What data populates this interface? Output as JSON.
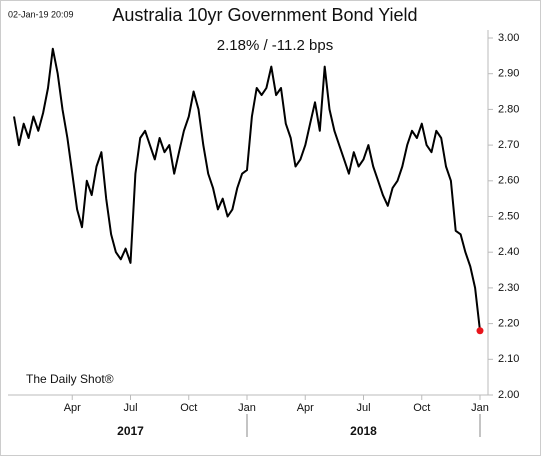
{
  "chart_data": {
    "type": "line",
    "timestamp": "02-Jan-19 20:09",
    "title": "Australia 10yr Government Bond Yield",
    "subtitle": "2.18%  /  -11.2 bps",
    "source": "The Daily Shot®",
    "color": "#000000",
    "last_point_color": "#e8141b",
    "x": [
      "2017-01",
      "2017-01",
      "2017-01",
      "2017-01",
      "2017-02",
      "2017-02",
      "2017-02",
      "2017-02",
      "2017-03",
      "2017-03",
      "2017-03",
      "2017-03",
      "2017-04",
      "2017-04",
      "2017-04",
      "2017-04",
      "2017-05",
      "2017-05",
      "2017-05",
      "2017-05",
      "2017-06",
      "2017-06",
      "2017-06",
      "2017-06",
      "2017-07",
      "2017-07",
      "2017-07",
      "2017-07",
      "2017-08",
      "2017-08",
      "2017-08",
      "2017-08",
      "2017-09",
      "2017-09",
      "2017-09",
      "2017-09",
      "2017-10",
      "2017-10",
      "2017-10",
      "2017-10",
      "2017-11",
      "2017-11",
      "2017-11",
      "2017-11",
      "2017-12",
      "2017-12",
      "2017-12",
      "2017-12",
      "2018-01",
      "2018-01",
      "2018-01",
      "2018-01",
      "2018-02",
      "2018-02",
      "2018-02",
      "2018-02",
      "2018-03",
      "2018-03",
      "2018-03",
      "2018-03",
      "2018-04",
      "2018-04",
      "2018-04",
      "2018-04",
      "2018-05",
      "2018-05",
      "2018-05",
      "2018-05",
      "2018-06",
      "2018-06",
      "2018-06",
      "2018-06",
      "2018-07",
      "2018-07",
      "2018-07",
      "2018-07",
      "2018-08",
      "2018-08",
      "2018-08",
      "2018-08",
      "2018-09",
      "2018-09",
      "2018-09",
      "2018-09",
      "2018-10",
      "2018-10",
      "2018-10",
      "2018-10",
      "2018-11",
      "2018-11",
      "2018-11",
      "2018-11",
      "2018-12",
      "2018-12",
      "2018-12",
      "2018-12",
      "2019-01"
    ],
    "values": [
      2.78,
      2.7,
      2.76,
      2.72,
      2.78,
      2.74,
      2.79,
      2.86,
      2.97,
      2.9,
      2.8,
      2.72,
      2.62,
      2.52,
      2.47,
      2.6,
      2.56,
      2.64,
      2.68,
      2.55,
      2.45,
      2.4,
      2.38,
      2.41,
      2.37,
      2.62,
      2.72,
      2.74,
      2.7,
      2.66,
      2.72,
      2.68,
      2.7,
      2.62,
      2.68,
      2.74,
      2.78,
      2.85,
      2.8,
      2.7,
      2.62,
      2.58,
      2.52,
      2.55,
      2.5,
      2.52,
      2.58,
      2.62,
      2.63,
      2.78,
      2.86,
      2.84,
      2.86,
      2.92,
      2.84,
      2.86,
      2.76,
      2.72,
      2.64,
      2.66,
      2.7,
      2.76,
      2.82,
      2.74,
      2.92,
      2.8,
      2.74,
      2.7,
      2.66,
      2.62,
      2.68,
      2.64,
      2.66,
      2.7,
      2.64,
      2.6,
      2.56,
      2.53,
      2.58,
      2.6,
      2.64,
      2.7,
      2.74,
      2.72,
      2.76,
      2.7,
      2.68,
      2.74,
      2.72,
      2.64,
      2.6,
      2.46,
      2.45,
      2.4,
      2.36,
      2.3,
      2.18
    ],
    "ylim": [
      2.0,
      3.0
    ],
    "yticks": [
      {
        "value": 2.0,
        "label": "2.00"
      },
      {
        "value": 2.1,
        "label": "2.10"
      },
      {
        "value": 2.2,
        "label": "2.20"
      },
      {
        "value": 2.3,
        "label": "2.30"
      },
      {
        "value": 2.4,
        "label": "2.40"
      },
      {
        "value": 2.5,
        "label": "2.50"
      },
      {
        "value": 2.6,
        "label": "2.60"
      },
      {
        "value": 2.7,
        "label": "2.70"
      },
      {
        "value": 2.8,
        "label": "2.80"
      },
      {
        "value": 2.9,
        "label": "2.90"
      },
      {
        "value": 3.0,
        "label": "3.00"
      }
    ],
    "xticks": [
      {
        "value": "2017-04",
        "label": "Apr"
      },
      {
        "value": "2017-07",
        "label": "Jul"
      },
      {
        "value": "2017-10",
        "label": "Oct"
      },
      {
        "value": "2018-01",
        "label": "Jan"
      },
      {
        "value": "2018-04",
        "label": "Apr"
      },
      {
        "value": "2018-07",
        "label": "Jul"
      },
      {
        "value": "2018-10",
        "label": "Oct"
      },
      {
        "value": "2019-01",
        "label": "Jan"
      }
    ],
    "years": [
      "2017",
      "2018"
    ]
  }
}
